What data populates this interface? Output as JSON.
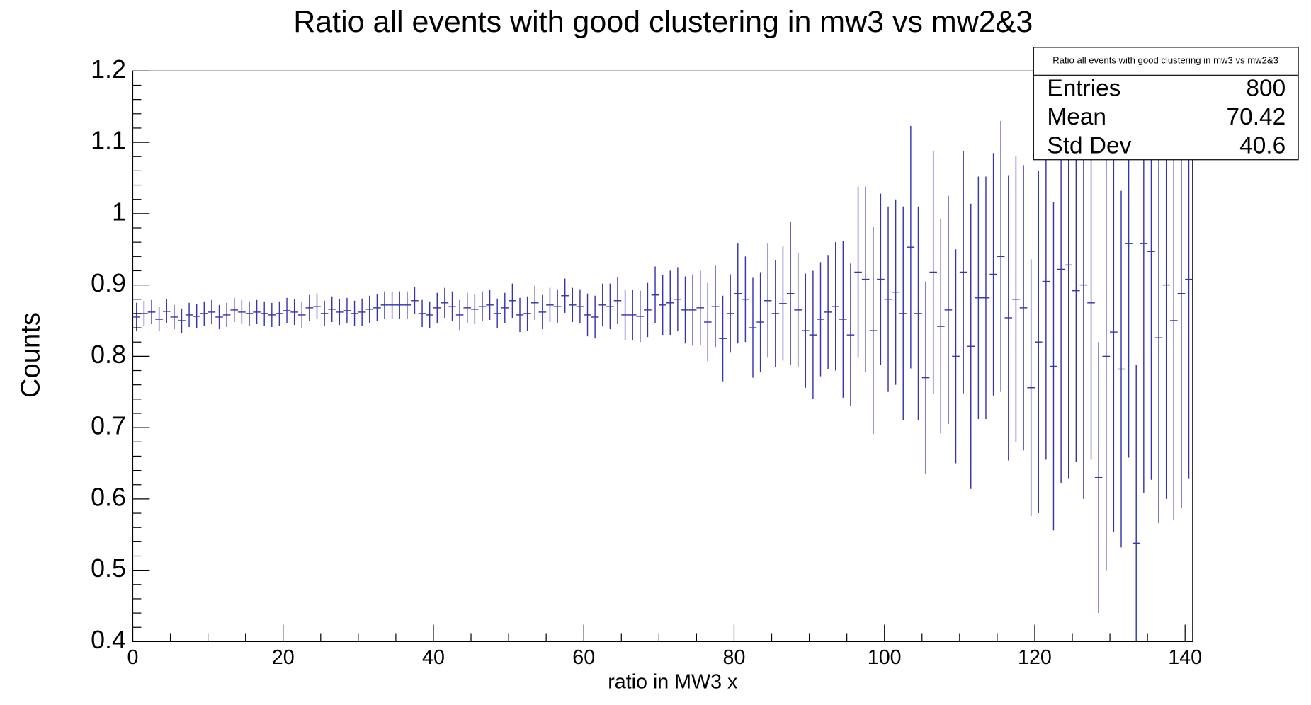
{
  "chart_data": {
    "type": "histogram-errors",
    "title": "Ratio all events with good clustering in mw3 vs mw2&3",
    "x_label": "ratio in MW3 x",
    "y_label": "Counts",
    "color": "#3535b0",
    "bins": [
      0,
      1,
      2,
      3,
      4,
      5,
      6,
      7,
      8,
      9,
      10,
      11,
      12,
      13,
      14,
      15,
      16,
      17,
      18,
      19,
      20,
      21,
      22,
      23,
      24,
      25,
      26,
      27,
      28,
      29,
      30,
      31,
      32,
      33,
      34,
      35,
      36,
      37,
      38,
      39,
      40,
      41,
      42,
      43,
      44,
      45,
      46,
      47,
      48,
      49,
      50,
      51,
      52,
      53,
      54,
      55,
      56,
      57,
      58,
      59,
      60,
      61,
      62,
      63,
      64,
      65,
      66,
      67,
      68,
      69,
      70,
      71,
      72,
      73,
      74,
      75,
      76,
      77,
      78,
      79,
      80,
      81,
      82,
      83,
      84,
      85,
      86,
      87,
      88,
      89,
      90,
      91,
      92,
      93,
      94,
      95,
      96,
      97,
      98,
      99,
      100,
      101,
      102,
      103,
      104,
      105,
      106,
      107,
      108,
      109,
      110,
      111,
      112,
      113,
      114,
      115,
      116,
      117,
      118,
      119,
      120,
      121,
      122,
      123,
      124,
      125,
      126,
      127,
      128,
      129,
      130,
      131,
      132,
      133,
      134,
      135,
      136,
      137,
      138,
      139,
      140,
      141
    ],
    "values": [
      0.855,
      0.86,
      0.862,
      0.852,
      0.863,
      0.855,
      0.85,
      0.858,
      0.856,
      0.86,
      0.862,
      0.855,
      0.858,
      0.865,
      0.862,
      0.86,
      0.862,
      0.86,
      0.858,
      0.86,
      0.864,
      0.862,
      0.858,
      0.868,
      0.87,
      0.86,
      0.866,
      0.862,
      0.864,
      0.86,
      0.862,
      0.866,
      0.868,
      0.872,
      0.872,
      0.872,
      0.872,
      0.878,
      0.86,
      0.858,
      0.868,
      0.875,
      0.87,
      0.858,
      0.868,
      0.866,
      0.87,
      0.872,
      0.86,
      0.868,
      0.878,
      0.858,
      0.86,
      0.875,
      0.862,
      0.872,
      0.87,
      0.885,
      0.872,
      0.87,
      0.858,
      0.855,
      0.872,
      0.87,
      0.878,
      0.858,
      0.858,
      0.856,
      0.865,
      0.886,
      0.872,
      0.875,
      0.88,
      0.865,
      0.865,
      0.868,
      0.848,
      0.87,
      0.825,
      0.86,
      0.888,
      0.88,
      0.84,
      0.848,
      0.878,
      0.86,
      0.874,
      0.888,
      0.865,
      0.836,
      0.83,
      0.852,
      0.862,
      0.87,
      0.852,
      0.83,
      0.918,
      0.908,
      0.836,
      0.908,
      0.88,
      0.89,
      0.86,
      0.953,
      0.86,
      0.77,
      0.918,
      0.842,
      0.865,
      0.8,
      0.918,
      0.814,
      0.882,
      0.882,
      0.915,
      0.94,
      0.854,
      0.88,
      0.868,
      0.756,
      0.82,
      0.905,
      0.786,
      0.922,
      0.928,
      0.892,
      0.9,
      0.875,
      0.63,
      0.8,
      0.834,
      0.782,
      0.958,
      0.538,
      0.958,
      0.947,
      0.826,
      0.9,
      0.85,
      0.888,
      0.908
    ],
    "errors": [
      0.02,
      0.018,
      0.017,
      0.017,
      0.017,
      0.017,
      0.017,
      0.017,
      0.017,
      0.017,
      0.017,
      0.017,
      0.017,
      0.017,
      0.017,
      0.017,
      0.017,
      0.017,
      0.017,
      0.017,
      0.018,
      0.018,
      0.018,
      0.018,
      0.018,
      0.018,
      0.018,
      0.018,
      0.018,
      0.018,
      0.019,
      0.019,
      0.019,
      0.019,
      0.019,
      0.019,
      0.019,
      0.019,
      0.019,
      0.019,
      0.021,
      0.021,
      0.021,
      0.021,
      0.021,
      0.021,
      0.021,
      0.021,
      0.021,
      0.021,
      0.024,
      0.024,
      0.024,
      0.024,
      0.024,
      0.024,
      0.024,
      0.024,
      0.024,
      0.024,
      0.03,
      0.03,
      0.03,
      0.032,
      0.033,
      0.035,
      0.035,
      0.036,
      0.038,
      0.04,
      0.042,
      0.045,
      0.045,
      0.047,
      0.05,
      0.052,
      0.055,
      0.057,
      0.06,
      0.055,
      0.07,
      0.06,
      0.07,
      0.07,
      0.08,
      0.075,
      0.08,
      0.1,
      0.08,
      0.08,
      0.09,
      0.08,
      0.08,
      0.09,
      0.11,
      0.1,
      0.12,
      0.13,
      0.145,
      0.12,
      0.13,
      0.13,
      0.15,
      0.17,
      0.15,
      0.135,
      0.17,
      0.15,
      0.16,
      0.15,
      0.17,
      0.2,
      0.17,
      0.17,
      0.17,
      0.19,
      0.2,
      0.2,
      0.2,
      0.18,
      0.24,
      0.25,
      0.23,
      0.3,
      0.3,
      0.24,
      0.3,
      0.22,
      0.19,
      0.3,
      0.28,
      0.25,
      0.3,
      0.25,
      0.35,
      0.32,
      0.26,
      0.3,
      0.28,
      0.3,
      0.28
    ],
    "xlim": [
      0,
      141
    ],
    "xticks": [
      0,
      20,
      40,
      60,
      80,
      100,
      120,
      140
    ],
    "ylim": [
      0.4,
      1.2
    ],
    "yticks": [
      0.4,
      0.5,
      0.6,
      0.7,
      0.8,
      0.9,
      1,
      1.1,
      1.2
    ],
    "stats": {
      "title": "Ratio all events with good clustering in mw3 vs mw2&3",
      "rows": [
        {
          "label": "Entries",
          "value": "800"
        },
        {
          "label": "Mean",
          "value": "70.42"
        },
        {
          "label": "Std Dev",
          "value": "40.6"
        }
      ]
    }
  }
}
